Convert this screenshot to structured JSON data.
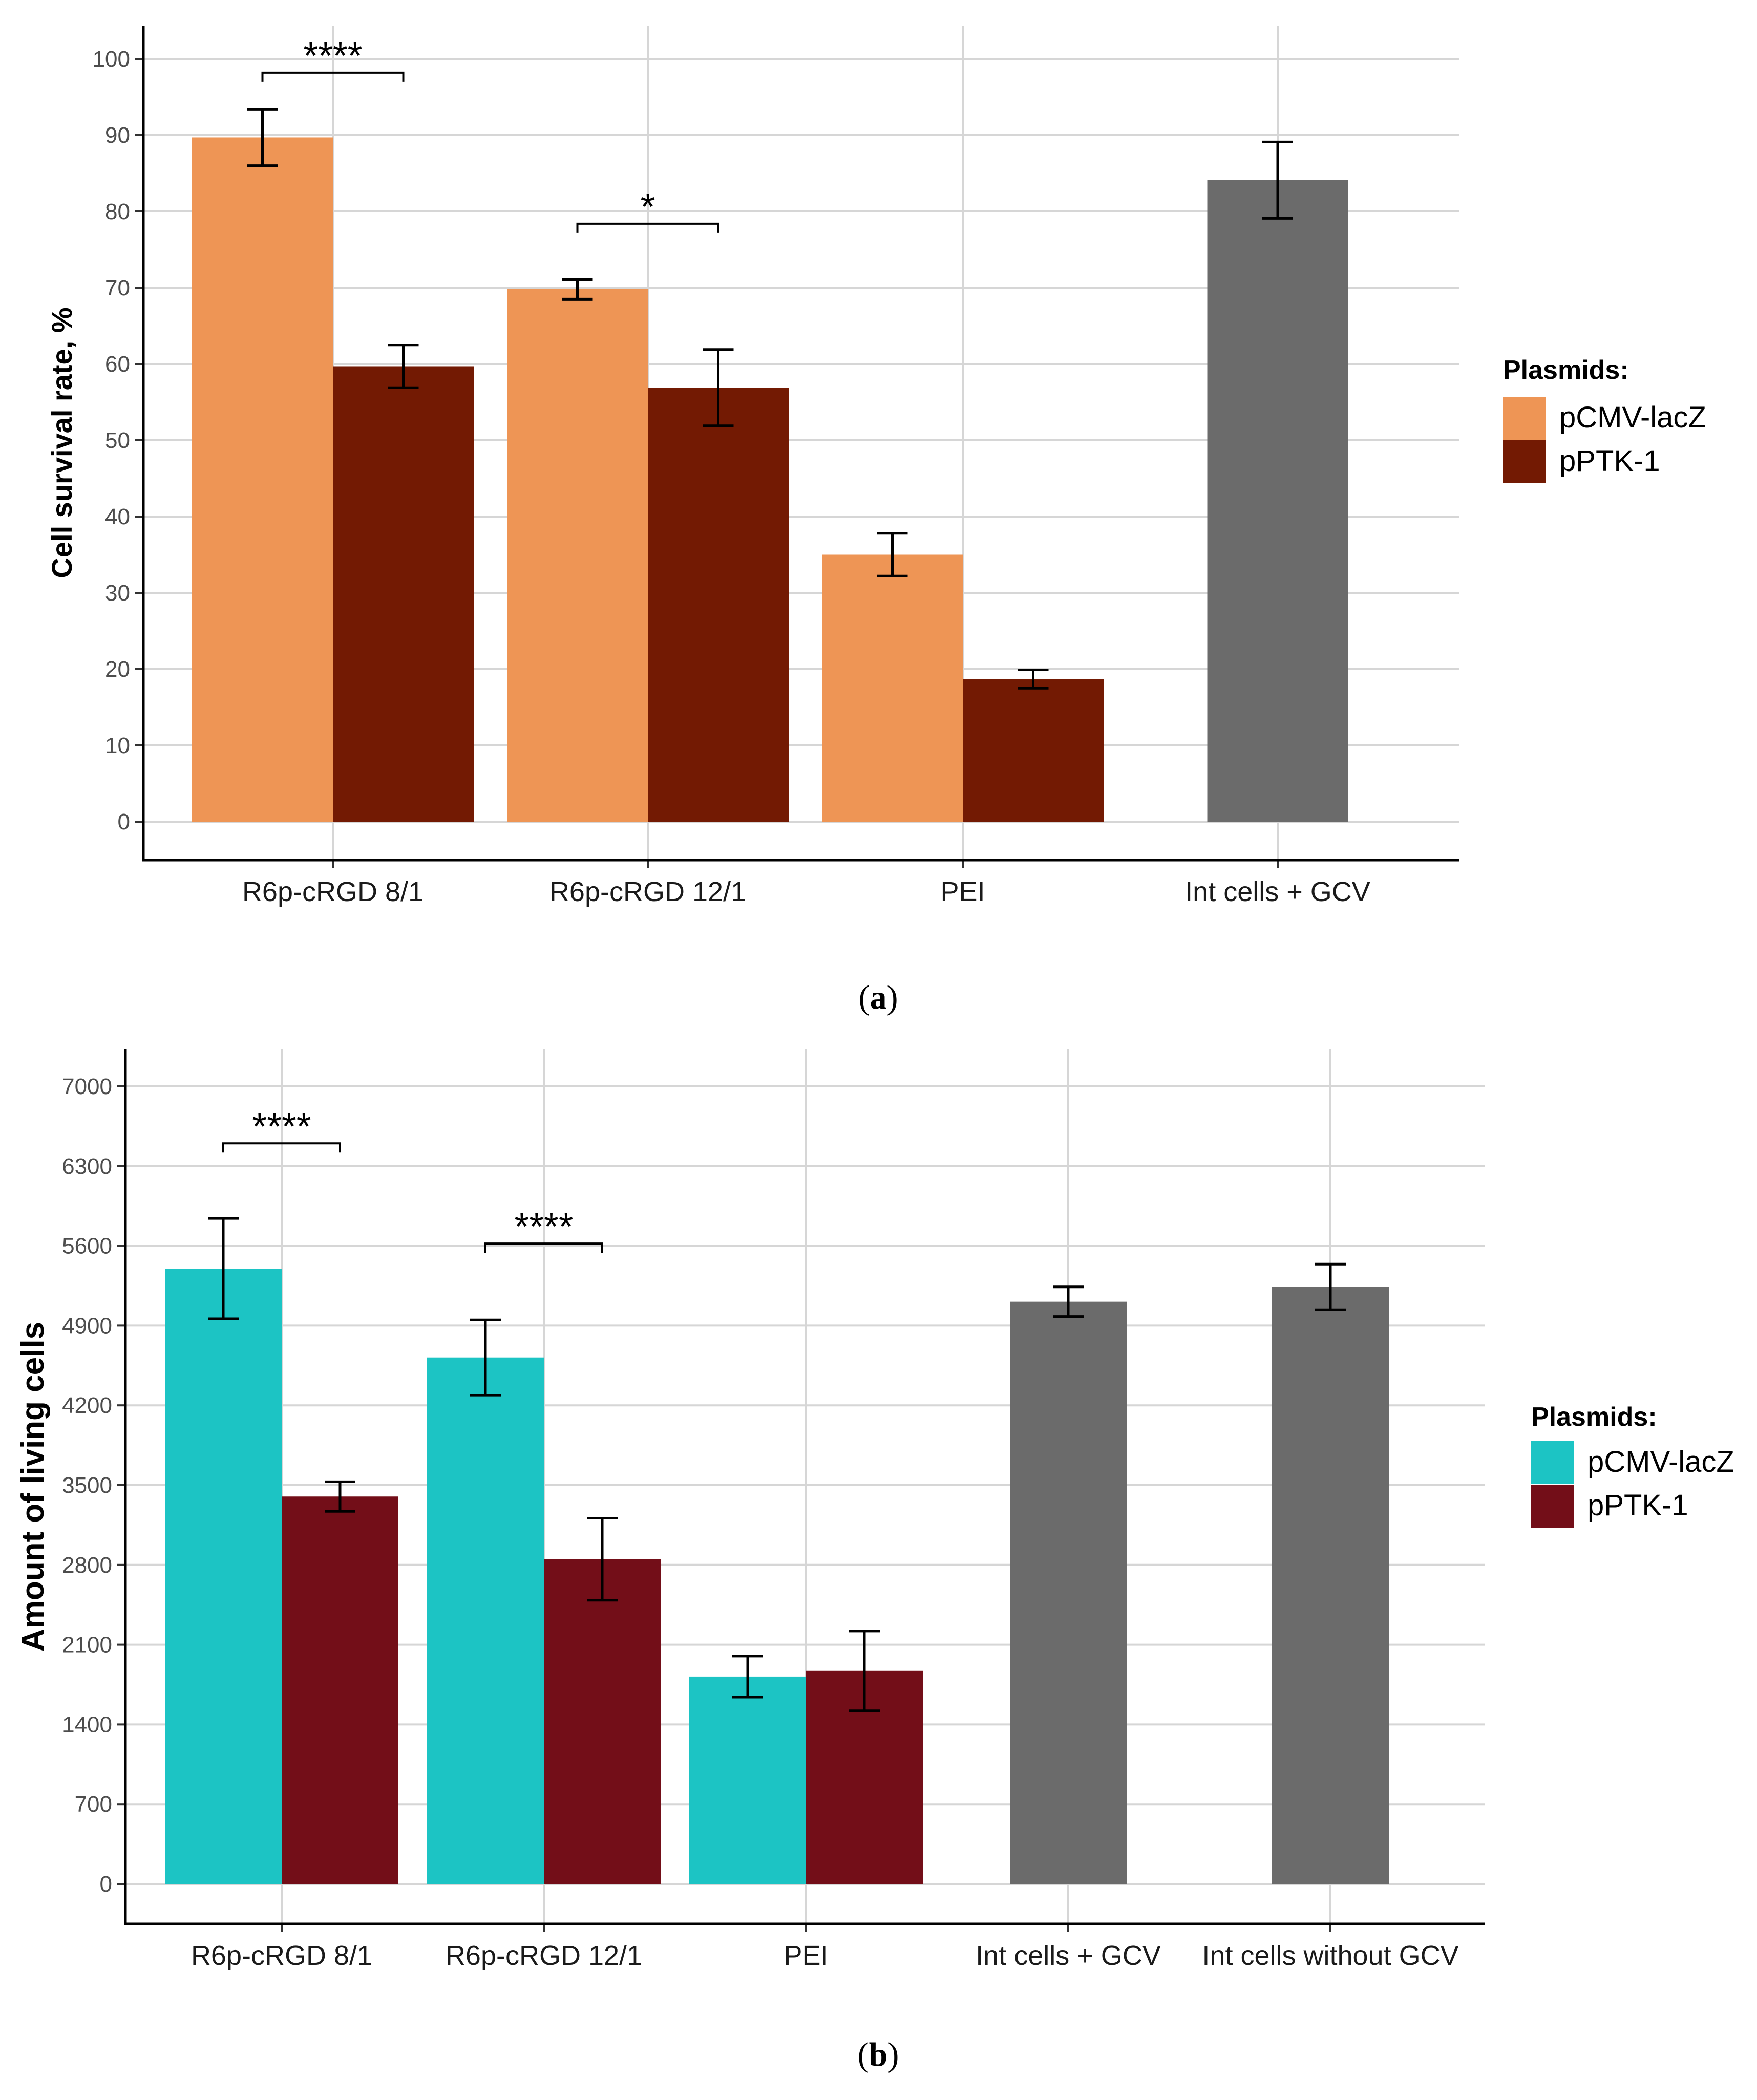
{
  "chart_data": [
    {
      "panel": "a",
      "caption_letter": "a",
      "type": "bar",
      "ylabel": "Cell survival rate, %",
      "ylim": [
        0,
        100
      ],
      "yticks": [
        0,
        10,
        20,
        30,
        40,
        50,
        60,
        70,
        80,
        90,
        100
      ],
      "categories": [
        "R6p-cRGD 8/1",
        "R6p-cRGD 12/1",
        "PEI",
        "Int cells + GCV"
      ],
      "grid": true,
      "legend": {
        "title": "Plasmids:",
        "placement": "right",
        "items": [
          {
            "label": "pCMV-lacZ",
            "color": "#ee9555"
          },
          {
            "label": "pPTK-1",
            "color": "#731a03"
          }
        ]
      },
      "series": [
        {
          "name": "pCMV-lacZ",
          "color": "#ee9555",
          "values": [
            89.7,
            69.8,
            35.0,
            null
          ],
          "errors": [
            3.7,
            1.3,
            2.8,
            null
          ]
        },
        {
          "name": "pPTK-1",
          "color": "#731a03",
          "values": [
            59.7,
            56.9,
            18.7,
            null
          ],
          "errors": [
            2.8,
            5.0,
            1.2,
            null
          ]
        },
        {
          "name": "",
          "color": "#6b6b6b",
          "values": [
            null,
            null,
            null,
            84.1
          ],
          "errors": [
            null,
            null,
            null,
            5.0
          ]
        }
      ],
      "significance": [
        {
          "category_index": 0,
          "label": "****",
          "y": 98.2
        },
        {
          "category_index": 1,
          "label": "*",
          "y": 78.4
        }
      ]
    },
    {
      "panel": "b",
      "caption_letter": "b",
      "type": "bar",
      "ylabel": "Amount of living cells",
      "ylim": [
        0,
        7000
      ],
      "yticks": [
        0,
        700,
        1400,
        2100,
        2800,
        3500,
        4200,
        4900,
        5600,
        6300,
        7000
      ],
      "categories": [
        "R6p-cRGD 8/1",
        "R6p-cRGD 12/1",
        "PEI",
        "Int cells + GCV",
        "Int cells without GCV"
      ],
      "grid": true,
      "legend": {
        "title": "Plasmids:",
        "placement": "right",
        "items": [
          {
            "label": "pCMV-lacZ",
            "color": "#1cc4c4"
          },
          {
            "label": "pPTK-1",
            "color": "#730e18"
          }
        ]
      },
      "series": [
        {
          "name": "pCMV-lacZ",
          "color": "#1cc4c4",
          "values": [
            5400,
            4620,
            1820,
            null,
            null
          ],
          "errors": [
            440,
            330,
            180,
            null,
            null
          ]
        },
        {
          "name": "pPTK-1",
          "color": "#730e18",
          "values": [
            3400,
            2850,
            1870,
            null,
            null
          ],
          "errors": [
            130,
            360,
            350,
            null,
            null
          ]
        },
        {
          "name": "",
          "color": "#6b6b6b",
          "values": [
            null,
            null,
            null,
            5110,
            5240
          ],
          "errors": [
            null,
            null,
            null,
            130,
            200
          ]
        }
      ],
      "significance": [
        {
          "category_index": 0,
          "label": "****",
          "y": 6500
        },
        {
          "category_index": 1,
          "label": "****",
          "y": 5620
        }
      ]
    }
  ]
}
